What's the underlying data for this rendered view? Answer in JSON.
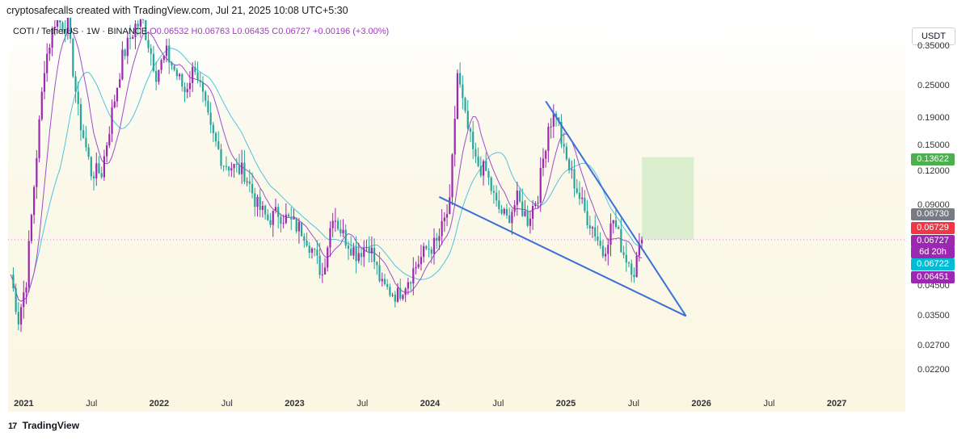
{
  "header": "cryptosafecalls created with TradingView.com, Jul 21, 2025 10:08 UTC+5:30",
  "legend": {
    "symbol": "COTI / TetherUS · 1W · BINANCE",
    "open": "O0.06532",
    "high": "H0.06763",
    "low": "L0.06435",
    "close": "C0.06727",
    "change": "+0.00196 (+3.00%)"
  },
  "currency_button": "USDT",
  "footer": {
    "logo": "17",
    "brand": "TradingView"
  },
  "price_tags": [
    {
      "label": "0.13622",
      "color": "#4caf50"
    },
    {
      "label": "0.06730",
      "color": "#787b86"
    },
    {
      "label": "0.06729",
      "color": "#f23645"
    },
    {
      "label": "0.06727",
      "color": "#9c27b0"
    },
    {
      "label": "6d 20h",
      "color": "#9c27b0"
    },
    {
      "label": "0.06722",
      "color": "#00bcd4"
    },
    {
      "label": "0.06451",
      "color": "#9c27b0"
    }
  ],
  "colors": {
    "up": "#9c27b0",
    "down": "#26a69a",
    "ma_fast": "#9c4dcc",
    "ma_slow": "#4fc3e0",
    "trendline": "#3b6fd8",
    "target_zone": "#d4ecc8"
  },
  "chart_data": {
    "type": "candlestick",
    "y_scale": "log",
    "ylim": [
      0.019,
      0.44
    ],
    "xlim": [
      "2020-11-16",
      "2027-07-01"
    ],
    "y_ticks": [
      "0.35000",
      "0.25000",
      "0.19000",
      "0.15000",
      "0.12000",
      "0.09000",
      "0.06729",
      "0.04500",
      "0.03500",
      "0.02700",
      "0.02200"
    ],
    "x_ticks": [
      {
        "label": "2021",
        "bold": true,
        "date": "2021-01-01"
      },
      {
        "label": "Jul",
        "bold": false,
        "date": "2021-07-01"
      },
      {
        "label": "2022",
        "bold": true,
        "date": "2022-01-01"
      },
      {
        "label": "Jul",
        "bold": false,
        "date": "2022-07-01"
      },
      {
        "label": "2023",
        "bold": true,
        "date": "2023-01-01"
      },
      {
        "label": "Jul",
        "bold": false,
        "date": "2023-07-01"
      },
      {
        "label": "2024",
        "bold": true,
        "date": "2024-01-01"
      },
      {
        "label": "Jul",
        "bold": false,
        "date": "2024-07-01"
      },
      {
        "label": "2025",
        "bold": true,
        "date": "2025-01-01"
      },
      {
        "label": "Jul",
        "bold": false,
        "date": "2025-07-01"
      },
      {
        "label": "2026",
        "bold": true,
        "date": "2026-01-01"
      },
      {
        "label": "Jul",
        "bold": false,
        "date": "2026-07-01"
      },
      {
        "label": "2027",
        "bold": true,
        "date": "2027-01-01"
      }
    ],
    "price_path": [
      [
        "2020-11-23",
        0.05
      ],
      [
        "2020-12-14",
        0.034
      ],
      [
        "2021-01-04",
        0.048
      ],
      [
        "2021-02-01",
        0.14
      ],
      [
        "2021-02-22",
        0.3
      ],
      [
        "2021-03-22",
        0.44
      ],
      [
        "2021-04-26",
        0.42
      ],
      [
        "2021-05-24",
        0.2
      ],
      [
        "2021-06-28",
        0.12
      ],
      [
        "2021-07-26",
        0.12
      ],
      [
        "2021-08-23",
        0.2
      ],
      [
        "2021-09-20",
        0.32
      ],
      [
        "2021-10-25",
        0.42
      ],
      [
        "2021-11-15",
        0.43
      ],
      [
        "2021-12-20",
        0.28
      ],
      [
        "2022-01-17",
        0.33
      ],
      [
        "2022-03-07",
        0.24
      ],
      [
        "2022-04-04",
        0.3
      ],
      [
        "2022-05-16",
        0.17
      ],
      [
        "2022-06-20",
        0.13
      ],
      [
        "2022-08-15",
        0.12
      ],
      [
        "2022-09-19",
        0.09
      ],
      [
        "2022-10-17",
        0.08
      ],
      [
        "2022-11-14",
        0.085
      ],
      [
        "2022-12-19",
        0.078
      ],
      [
        "2023-01-23",
        0.072
      ],
      [
        "2023-02-13",
        0.062
      ],
      [
        "2023-03-13",
        0.05
      ],
      [
        "2023-04-10",
        0.085
      ],
      [
        "2023-05-08",
        0.07
      ],
      [
        "2023-06-12",
        0.06
      ],
      [
        "2023-07-17",
        0.065
      ],
      [
        "2023-08-21",
        0.045
      ],
      [
        "2023-10-02",
        0.042
      ],
      [
        "2023-11-06",
        0.05
      ],
      [
        "2023-12-18",
        0.062
      ],
      [
        "2024-01-15",
        0.065
      ],
      [
        "2024-02-19",
        0.09
      ],
      [
        "2024-03-11",
        0.28
      ],
      [
        "2024-04-01",
        0.19
      ],
      [
        "2024-04-29",
        0.13
      ],
      [
        "2024-05-27",
        0.12
      ],
      [
        "2024-06-24",
        0.09
      ],
      [
        "2024-07-22",
        0.08
      ],
      [
        "2024-08-19",
        0.095
      ],
      [
        "2024-09-16",
        0.08
      ],
      [
        "2024-10-14",
        0.1
      ],
      [
        "2024-11-11",
        0.18
      ],
      [
        "2024-12-02",
        0.2
      ],
      [
        "2024-12-23",
        0.14
      ],
      [
        "2025-01-20",
        0.11
      ],
      [
        "2025-02-17",
        0.085
      ],
      [
        "2025-03-17",
        0.072
      ],
      [
        "2025-04-07",
        0.06
      ],
      [
        "2025-05-05",
        0.08
      ],
      [
        "2025-06-02",
        0.06
      ],
      [
        "2025-06-30",
        0.052
      ],
      [
        "2025-07-21",
        0.06727
      ]
    ],
    "drawings": {
      "resistance_line": [
        [
          "2024-11-04",
          0.22
        ],
        [
          "2025-11-17",
          0.035
        ]
      ],
      "support_line": [
        [
          "2024-01-22",
          0.097
        ],
        [
          "2025-11-17",
          0.035
        ]
      ],
      "target_zone": {
        "x0": "2025-07-21",
        "x1": "2025-12-08",
        "y0": 0.06729,
        "y1": 0.13622
      }
    }
  }
}
